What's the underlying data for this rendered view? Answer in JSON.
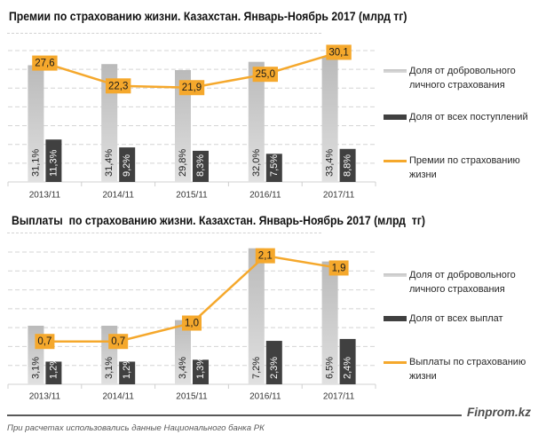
{
  "chart_data": [
    {
      "type": "bar",
      "title": "Премии по страхованию жизни. Казахстан. Январь-Ноябрь 2017 (млрд тг)",
      "categories": [
        "2013/11",
        "2014/11",
        "2015/11",
        "2016/11",
        "2017/11"
      ],
      "bar_axis": {
        "min": 0,
        "max": 35,
        "step": 5,
        "unit": "%"
      },
      "line_axis": {
        "min": 0,
        "max": 30.5
      },
      "grid": true,
      "legend_position": "right",
      "series": [
        {
          "kind": "bar",
          "legend_lines": [
            "Доля от добровольного",
            "личного страхования"
          ],
          "values": [
            31.1,
            31.4,
            29.8,
            32.0,
            33.4
          ],
          "labels": [
            "31,1%",
            "31,4%",
            "29,8%",
            "32,0%",
            "33,4%"
          ],
          "color": "#c8c8c8"
        },
        {
          "kind": "bar",
          "legend_lines": [
            "Доля от всех поступлений"
          ],
          "values": [
            11.3,
            9.2,
            8.3,
            7.5,
            8.8
          ],
          "labels": [
            "11,3%",
            "9,2%",
            "8,3%",
            "7,5%",
            "8,8%"
          ],
          "color": "#404040"
        },
        {
          "kind": "line",
          "legend_lines": [
            "Премии по страхованию",
            "жизни"
          ],
          "values": [
            27.6,
            22.3,
            21.9,
            25.0,
            30.1
          ],
          "labels": [
            "27,6",
            "22,3",
            "21,9",
            "25,0",
            "30,1"
          ],
          "color": "#f5a82c"
        }
      ]
    },
    {
      "type": "bar",
      "title": "Выплаты  по страхованию жизни. Казахстан. Январь-Ноябрь 2017 (млрд  тг)",
      "categories": [
        "2013/11",
        "2014/11",
        "2015/11",
        "2016/11",
        "2017/11"
      ],
      "bar_axis": {
        "min": 0,
        "max": 7,
        "step": 1,
        "unit": "%"
      },
      "line_axis": {
        "min": 0,
        "max": 2.16
      },
      "grid": true,
      "legend_position": "right",
      "series": [
        {
          "kind": "bar",
          "legend_lines": [
            "Доля от добровольного",
            "личного страхования"
          ],
          "values": [
            3.1,
            3.1,
            3.4,
            7.2,
            6.5
          ],
          "labels": [
            "3,1%",
            "3,1%",
            "3,4%",
            "7,2%",
            "6,5%"
          ],
          "color": "#c8c8c8"
        },
        {
          "kind": "bar",
          "legend_lines": [
            "Доля от всех выплат"
          ],
          "values": [
            1.2,
            1.2,
            1.3,
            2.3,
            2.4
          ],
          "labels": [
            "1,2%",
            "1,2%",
            "1,3%",
            "2,3%",
            "2,4%"
          ],
          "color": "#404040"
        },
        {
          "kind": "line",
          "legend_lines": [
            "Выплаты по страхованию",
            "жизни"
          ],
          "values": [
            0.7,
            0.7,
            1.0,
            2.1,
            1.9
          ],
          "labels": [
            "0,7",
            "0,7",
            "1,0",
            "2,1",
            "1,9"
          ],
          "color": "#f5a82c"
        }
      ]
    }
  ],
  "footer": {
    "brand": "Finprom.kz",
    "note": "При расчетах использовались данные Национального банка РК"
  }
}
